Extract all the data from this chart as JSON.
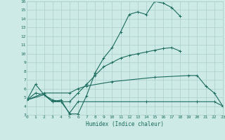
{
  "xlabel": "Humidex (Indice chaleur)",
  "xlim": [
    0,
    23
  ],
  "ylim": [
    3,
    16
  ],
  "yticks": [
    3,
    4,
    5,
    6,
    7,
    8,
    9,
    10,
    11,
    12,
    13,
    14,
    15,
    16
  ],
  "xticks": [
    0,
    1,
    2,
    3,
    4,
    5,
    6,
    7,
    8,
    9,
    10,
    11,
    12,
    13,
    14,
    15,
    16,
    17,
    18,
    19,
    20,
    21,
    22,
    23
  ],
  "bg_color": "#ceeae6",
  "grid_color": "#aacfcb",
  "line_color": "#1a6b5e",
  "lines": [
    {
      "x": [
        0,
        1,
        2,
        3,
        4,
        5,
        6,
        7,
        8,
        9,
        10,
        11,
        12,
        13,
        14,
        15,
        16,
        17,
        18
      ],
      "y": [
        4.7,
        6.5,
        5.3,
        4.5,
        4.7,
        3.1,
        3.1,
        5.2,
        7.8,
        9.5,
        10.7,
        12.5,
        14.5,
        14.8,
        14.5,
        16.0,
        15.8,
        15.3,
        14.3
      ]
    },
    {
      "x": [
        0,
        1,
        2,
        3,
        4,
        5,
        6,
        7,
        8,
        9,
        10,
        11,
        12,
        13,
        14,
        15,
        16,
        17,
        18
      ],
      "y": [
        4.7,
        5.5,
        5.3,
        4.5,
        4.5,
        4.5,
        5.5,
        6.5,
        7.5,
        8.5,
        9.0,
        9.5,
        9.8,
        10.0,
        10.2,
        10.4,
        10.6,
        10.7,
        10.3
      ]
    },
    {
      "x": [
        0,
        2,
        3,
        4,
        5,
        6,
        14,
        20,
        22,
        23
      ],
      "y": [
        4.7,
        5.3,
        4.7,
        4.5,
        3.2,
        4.5,
        4.5,
        4.5,
        4.5,
        4.0
      ]
    },
    {
      "x": [
        0,
        2,
        5,
        6,
        7,
        10,
        15,
        19,
        20,
        21,
        22,
        23
      ],
      "y": [
        4.7,
        5.5,
        5.5,
        6.0,
        6.3,
        6.8,
        7.3,
        7.5,
        7.5,
        6.3,
        5.5,
        4.0
      ]
    }
  ]
}
